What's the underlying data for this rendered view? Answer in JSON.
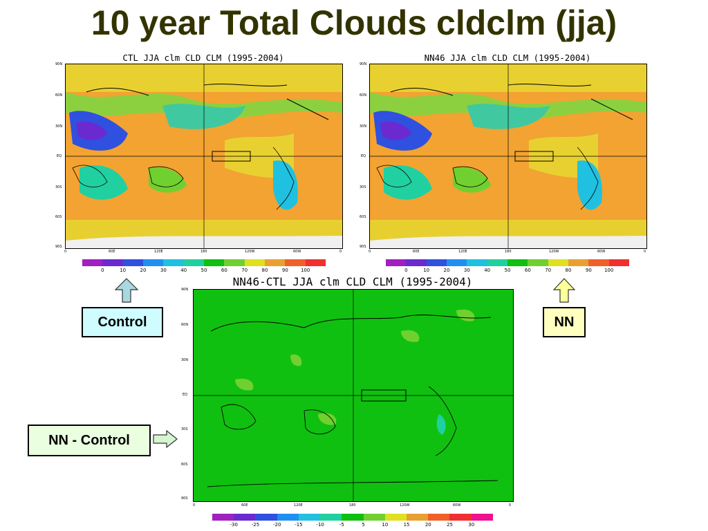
{
  "slide": {
    "title": "10 year Total Clouds cldclm (jja)"
  },
  "maps": {
    "ctl": {
      "title": "CTL JJA clm CLD CLM (1995-2004)"
    },
    "nn": {
      "title": "NN46 JJA clm CLD CLM (1995-2004)"
    },
    "diff": {
      "title": "NN46-CTL JJA clm CLD CLM (1995-2004)"
    }
  },
  "axes": {
    "lat_labels": [
      "90N",
      "60N",
      "30N",
      "EQ",
      "30S",
      "60S",
      "90S"
    ],
    "lon_labels": [
      "0",
      "60E",
      "120E",
      "180",
      "120W",
      "60W",
      "0"
    ]
  },
  "colorbars": {
    "abs": {
      "labels": [
        "0",
        "10",
        "20",
        "30",
        "40",
        "50",
        "60",
        "70",
        "80",
        "90",
        "100"
      ],
      "colors": [
        "#a020c0",
        "#6a2ad0",
        "#3050e0",
        "#2090f0",
        "#20c0e0",
        "#20d0a0",
        "#10c010",
        "#70d030",
        "#e0e020",
        "#e8a030",
        "#f06028",
        "#f03030"
      ]
    },
    "diff": {
      "labels": [
        "-30",
        "-25",
        "-20",
        "-15",
        "-10",
        "-5",
        "5",
        "10",
        "15",
        "20",
        "25",
        "30"
      ],
      "colors": [
        "#a020c0",
        "#6a2ad0",
        "#3050e0",
        "#2090f0",
        "#20c0e0",
        "#20d0a0",
        "#10c010",
        "#70d030",
        "#e0e020",
        "#e8a030",
        "#f06028",
        "#f03030",
        "#f01090"
      ]
    }
  },
  "callouts": {
    "control": "Control",
    "nn": "NN",
    "nn_minus_control": "NN - Control"
  },
  "colors": {
    "title": "#333300",
    "control_box": "#cffcff",
    "nn_box": "#ffffc0",
    "diff_box": "#eaffe0",
    "control_arrow": "#a8d8e0",
    "nn_arrow": "#ffff99",
    "diff_arrow": "#d6f5d0"
  }
}
